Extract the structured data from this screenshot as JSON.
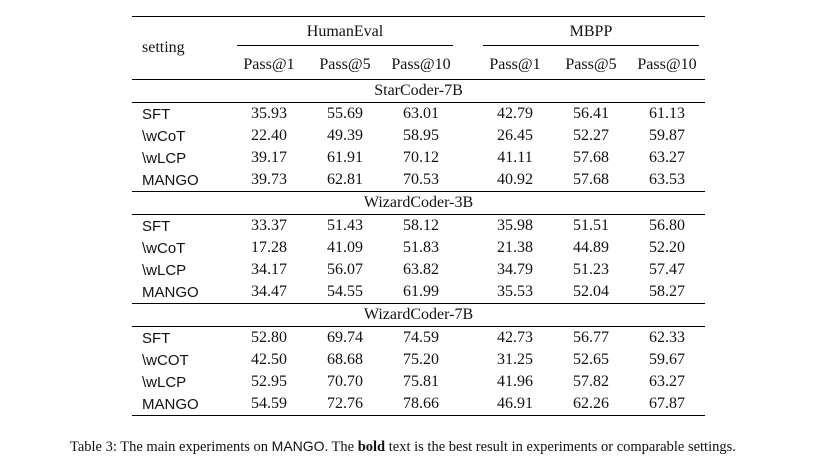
{
  "table": {
    "setting_label": "setting",
    "groups": [
      "HumanEval",
      "MBPP"
    ],
    "metrics": [
      "Pass@1",
      "Pass@5",
      "Pass@10",
      "Pass@1",
      "Pass@5",
      "Pass@10"
    ],
    "sections": [
      {
        "title": "StarCoder-7B",
        "rows": [
          {
            "name": "SFT",
            "values": [
              "35.93",
              "55.69",
              "63.01",
              "42.79",
              "56.41",
              "61.13"
            ],
            "bold": [
              false,
              false,
              false,
              false,
              false,
              false
            ]
          },
          {
            "name": "\\wCoT",
            "values": [
              "22.40",
              "49.39",
              "58.95",
              "26.45",
              "52.27",
              "59.87"
            ],
            "bold": [
              false,
              false,
              false,
              false,
              false,
              false
            ]
          },
          {
            "name": "\\wLCP",
            "values": [
              "39.17",
              "61.91",
              "70.12",
              "41.11",
              "57.68",
              "63.27"
            ],
            "bold": [
              false,
              false,
              false,
              true,
              true,
              false
            ]
          },
          {
            "name": "MANGO",
            "values": [
              "39.73",
              "62.81",
              "70.53",
              "40.92",
              "57.68",
              "63.53"
            ],
            "bold": [
              true,
              true,
              true,
              false,
              true,
              true
            ]
          }
        ]
      },
      {
        "title": "WizardCoder-3B",
        "rows": [
          {
            "name": "SFT",
            "values": [
              "33.37",
              "51.43",
              "58.12",
              "35.98",
              "51.51",
              "56.80"
            ],
            "bold": [
              false,
              false,
              false,
              false,
              false,
              false
            ]
          },
          {
            "name": "\\wCoT",
            "values": [
              "17.28",
              "41.09",
              "51.83",
              "21.38",
              "44.89",
              "52.20"
            ],
            "bold": [
              false,
              false,
              false,
              false,
              false,
              false
            ]
          },
          {
            "name": "\\wLCP",
            "values": [
              "34.17",
              "56.07",
              "63.82",
              "34.79",
              "51.23",
              "57.47"
            ],
            "bold": [
              false,
              true,
              true,
              false,
              false,
              false
            ]
          },
          {
            "name": "MANGO",
            "values": [
              "34.47",
              "54.55",
              "61.99",
              "35.53",
              "52.04",
              "58.27"
            ],
            "bold": [
              true,
              false,
              false,
              true,
              true,
              true
            ]
          }
        ]
      },
      {
        "title": "WizardCoder-7B",
        "rows": [
          {
            "name": "SFT",
            "values": [
              "52.80",
              "69.74",
              "74.59",
              "42.73",
              "56.77",
              "62.33"
            ],
            "bold": [
              false,
              false,
              false,
              false,
              false,
              false
            ]
          },
          {
            "name": "\\wCOT",
            "values": [
              "42.50",
              "68.68",
              "75.20",
              "31.25",
              "52.65",
              "59.67"
            ],
            "bold": [
              false,
              false,
              false,
              false,
              false,
              false
            ]
          },
          {
            "name": "\\wLCP",
            "values": [
              "52.95",
              "70.70",
              "75.81",
              "41.96",
              "57.82",
              "63.27"
            ],
            "bold": [
              false,
              false,
              false,
              false,
              false,
              false
            ]
          },
          {
            "name": "MANGO",
            "values": [
              "54.59",
              "72.76",
              "78.66",
              "46.91",
              "62.26",
              "67.87"
            ],
            "bold": [
              true,
              true,
              true,
              true,
              true,
              true
            ]
          }
        ]
      }
    ]
  },
  "caption": {
    "prefix": "Table 3: The main experiments on",
    "name": "MANGO",
    "middle": ". The",
    "bold_word": "bold",
    "suffix": "text is the best result in experiments or comparable settings."
  }
}
